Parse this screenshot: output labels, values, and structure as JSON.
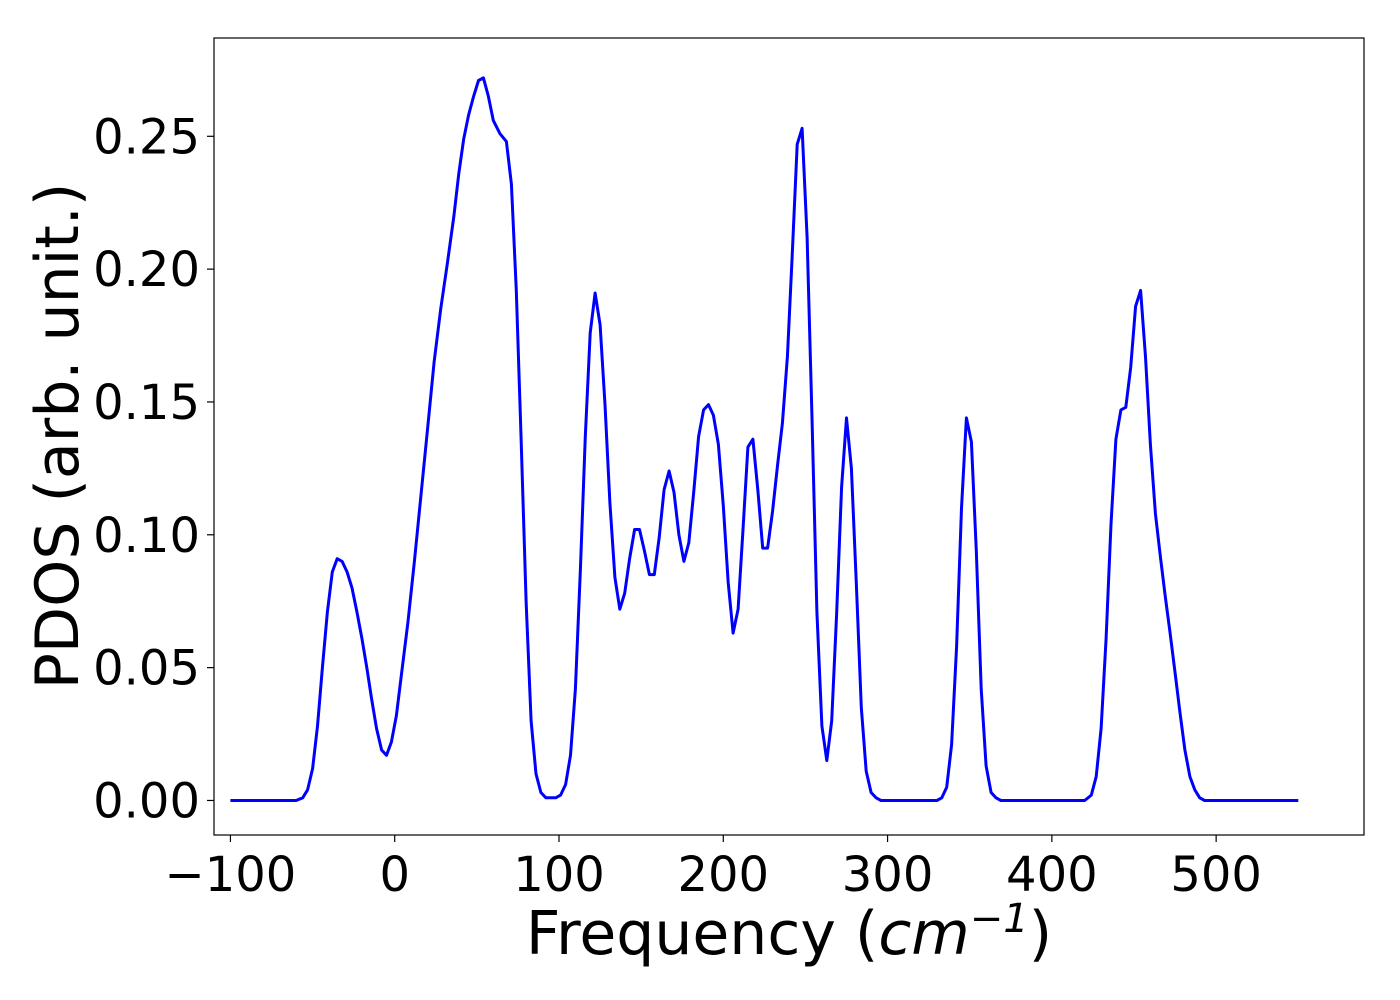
{
  "chart_data": {
    "type": "line",
    "xlabel": "Frequency (cm−1)",
    "ylabel": "PDOS (arb. unit.)",
    "xlim": [
      -110,
      590
    ],
    "ylim": [
      -0.013,
      0.287
    ],
    "grid": false,
    "line_color": "#0000ff",
    "xticks": [
      -100,
      0,
      100,
      200,
      300,
      400,
      500
    ],
    "xtick_labels": [
      "−100",
      "0",
      "100",
      "200",
      "300",
      "400",
      "500"
    ],
    "yticks": [
      0.0,
      0.05,
      0.1,
      0.15,
      0.2,
      0.25
    ],
    "ytick_labels": [
      "0.00",
      "0.05",
      "0.10",
      "0.15",
      "0.20",
      "0.25"
    ],
    "series": [
      {
        "points": [
          [
            -100,
            0.0
          ],
          [
            -60,
            0.0
          ],
          [
            -56,
            0.001
          ],
          [
            -53,
            0.004
          ],
          [
            -50,
            0.012
          ],
          [
            -47,
            0.028
          ],
          [
            -44,
            0.05
          ],
          [
            -41,
            0.071
          ],
          [
            -38,
            0.086
          ],
          [
            -35,
            0.091
          ],
          [
            -32,
            0.09
          ],
          [
            -29,
            0.086
          ],
          [
            -26,
            0.08
          ],
          [
            -23,
            0.071
          ],
          [
            -20,
            0.061
          ],
          [
            -17,
            0.05
          ],
          [
            -14,
            0.038
          ],
          [
            -11,
            0.027
          ],
          [
            -8,
            0.019
          ],
          [
            -5,
            0.017
          ],
          [
            -2,
            0.022
          ],
          [
            1,
            0.032
          ],
          [
            4,
            0.047
          ],
          [
            8,
            0.067
          ],
          [
            12,
            0.09
          ],
          [
            16,
            0.115
          ],
          [
            20,
            0.14
          ],
          [
            24,
            0.165
          ],
          [
            28,
            0.185
          ],
          [
            32,
            0.202
          ],
          [
            36,
            0.22
          ],
          [
            39,
            0.236
          ],
          [
            42,
            0.249
          ],
          [
            45,
            0.258
          ],
          [
            48,
            0.265
          ],
          [
            51,
            0.271
          ],
          [
            54,
            0.272
          ],
          [
            57,
            0.265
          ],
          [
            60,
            0.256
          ],
          [
            64,
            0.251
          ],
          [
            68,
            0.248
          ],
          [
            71,
            0.232
          ],
          [
            74,
            0.192
          ],
          [
            77,
            0.135
          ],
          [
            80,
            0.075
          ],
          [
            83,
            0.03
          ],
          [
            86,
            0.01
          ],
          [
            89,
            0.003
          ],
          [
            92,
            0.001
          ],
          [
            95,
            0.001
          ],
          [
            98,
            0.001
          ],
          [
            101,
            0.002
          ],
          [
            104,
            0.006
          ],
          [
            107,
            0.017
          ],
          [
            110,
            0.042
          ],
          [
            113,
            0.087
          ],
          [
            116,
            0.137
          ],
          [
            119,
            0.176
          ],
          [
            122,
            0.191
          ],
          [
            125,
            0.179
          ],
          [
            128,
            0.149
          ],
          [
            131,
            0.112
          ],
          [
            134,
            0.084
          ],
          [
            137,
            0.072
          ],
          [
            140,
            0.078
          ],
          [
            143,
            0.091
          ],
          [
            146,
            0.102
          ],
          [
            149,
            0.102
          ],
          [
            152,
            0.094
          ],
          [
            155,
            0.085
          ],
          [
            158,
            0.085
          ],
          [
            161,
            0.099
          ],
          [
            164,
            0.117
          ],
          [
            167,
            0.124
          ],
          [
            170,
            0.116
          ],
          [
            173,
            0.1
          ],
          [
            176,
            0.09
          ],
          [
            179,
            0.097
          ],
          [
            182,
            0.116
          ],
          [
            185,
            0.137
          ],
          [
            188,
            0.147
          ],
          [
            191,
            0.149
          ],
          [
            194,
            0.145
          ],
          [
            197,
            0.134
          ],
          [
            200,
            0.111
          ],
          [
            203,
            0.082
          ],
          [
            206,
            0.063
          ],
          [
            209,
            0.072
          ],
          [
            212,
            0.102
          ],
          [
            215,
            0.133
          ],
          [
            218,
            0.136
          ],
          [
            221,
            0.117
          ],
          [
            224,
            0.095
          ],
          [
            227,
            0.095
          ],
          [
            230,
            0.109
          ],
          [
            233,
            0.126
          ],
          [
            236,
            0.142
          ],
          [
            239,
            0.167
          ],
          [
            242,
            0.206
          ],
          [
            245,
            0.247
          ],
          [
            248,
            0.253
          ],
          [
            251,
            0.212
          ],
          [
            254,
            0.144
          ],
          [
            257,
            0.071
          ],
          [
            260,
            0.028
          ],
          [
            263,
            0.015
          ],
          [
            266,
            0.03
          ],
          [
            269,
            0.07
          ],
          [
            272,
            0.118
          ],
          [
            275,
            0.144
          ],
          [
            278,
            0.125
          ],
          [
            281,
            0.081
          ],
          [
            284,
            0.035
          ],
          [
            287,
            0.011
          ],
          [
            290,
            0.003
          ],
          [
            293,
            0.001
          ],
          [
            296,
            0.0
          ],
          [
            330,
            0.0
          ],
          [
            333,
            0.001
          ],
          [
            336,
            0.005
          ],
          [
            339,
            0.021
          ],
          [
            342,
            0.058
          ],
          [
            345,
            0.11
          ],
          [
            348,
            0.144
          ],
          [
            351,
            0.135
          ],
          [
            354,
            0.094
          ],
          [
            357,
            0.042
          ],
          [
            360,
            0.013
          ],
          [
            363,
            0.003
          ],
          [
            366,
            0.001
          ],
          [
            369,
            0.0
          ],
          [
            420,
            0.0
          ],
          [
            424,
            0.002
          ],
          [
            427,
            0.009
          ],
          [
            430,
            0.027
          ],
          [
            433,
            0.061
          ],
          [
            436,
            0.104
          ],
          [
            439,
            0.136
          ],
          [
            442,
            0.147
          ],
          [
            445,
            0.148
          ],
          [
            448,
            0.163
          ],
          [
            451,
            0.186
          ],
          [
            454,
            0.192
          ],
          [
            457,
            0.167
          ],
          [
            460,
            0.134
          ],
          [
            463,
            0.108
          ],
          [
            466,
            0.092
          ],
          [
            469,
            0.077
          ],
          [
            472,
            0.063
          ],
          [
            475,
            0.048
          ],
          [
            478,
            0.033
          ],
          [
            481,
            0.019
          ],
          [
            484,
            0.009
          ],
          [
            487,
            0.004
          ],
          [
            490,
            0.001
          ],
          [
            493,
            0.0
          ],
          [
            550,
            0.0
          ]
        ]
      }
    ]
  }
}
